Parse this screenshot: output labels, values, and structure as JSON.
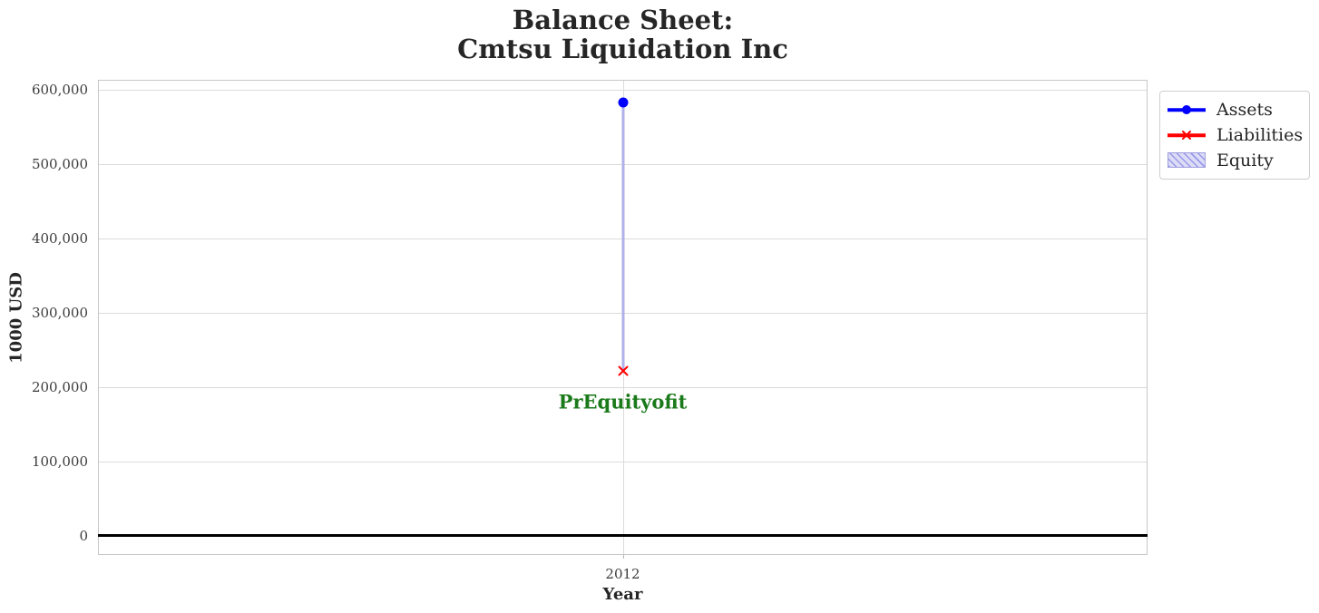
{
  "chart_data": {
    "type": "line",
    "title": "Balance Sheet:\nCmtsu Liquidation Inc",
    "xlabel": "Year",
    "ylabel": "1000 USD",
    "x": [
      2012
    ],
    "series": [
      {
        "name": "Assets",
        "type": "line",
        "marker": "circle",
        "color": "#0000ff",
        "values": [
          582000
        ]
      },
      {
        "name": "Liabilities",
        "type": "line",
        "marker": "x",
        "color": "#ff0000",
        "values": [
          221000
        ]
      },
      {
        "name": "Equity",
        "type": "bar",
        "stacked_on": "Liabilities",
        "fill": "#dcdcf6",
        "edge": "#9f9fe0",
        "hatch": "///",
        "bar_color": "#b0b0ea",
        "values": [
          361000
        ]
      }
    ],
    "xlim": [
      2011.5,
      2012.5
    ],
    "ylim": [
      -26000,
      613000
    ],
    "xticks": [
      2012
    ],
    "xtick_labels": [
      "2012"
    ],
    "yticks": [
      0,
      100000,
      200000,
      300000,
      400000,
      500000,
      600000
    ],
    "ytick_labels": [
      "0",
      "100,000",
      "200,000",
      "300,000",
      "400,000",
      "500,000",
      "600,000"
    ],
    "grid": true,
    "zero_line_y": 0,
    "legend": {
      "position": "upper right outside",
      "items": [
        "Assets",
        "Liabilities",
        "Equity"
      ]
    },
    "annotation": {
      "text": "PrEquityofit",
      "x": 2012,
      "y": 180000,
      "color": "#1a7a1a"
    }
  }
}
